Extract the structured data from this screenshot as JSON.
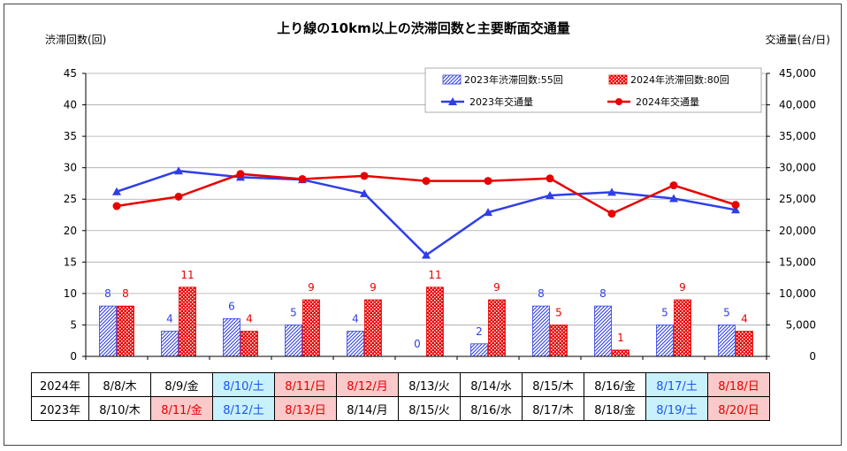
{
  "chart_data": {
    "type": "bar+line",
    "title": "上り線の10km以上の渋滞回数と主要断面交通量",
    "ylabel_left": "渋滞回数(回)",
    "ylabel_right": "交通量(台/日)",
    "ylim_left": [
      0,
      45
    ],
    "ylim_right": [
      0,
      45000
    ],
    "left_ticks": [
      "0",
      "5",
      "10",
      "15",
      "20",
      "25",
      "30",
      "35",
      "40",
      "45"
    ],
    "right_ticks": [
      "0",
      "5,000",
      "10,000",
      "15,000",
      "20,000",
      "25,000",
      "30,000",
      "35,000",
      "40,000",
      "45,000"
    ],
    "legend": {
      "bar2023": "2023年渋滞回数:55回",
      "bar2024": "2024年渋滞回数:80回",
      "line2023": "2023年交通量",
      "line2024": "2024年交通量"
    },
    "bar_2023": [
      8,
      4,
      6,
      5,
      4,
      0,
      2,
      8,
      8,
      5,
      5
    ],
    "bar_2024": [
      8,
      11,
      4,
      9,
      9,
      11,
      9,
      5,
      1,
      9,
      4
    ],
    "bar_2023_labels": [
      "8",
      "4",
      "6",
      "5",
      "4",
      "0",
      "2",
      "8",
      "8",
      "5",
      "5"
    ],
    "bar_2024_labels": [
      "8",
      "11",
      "4",
      "9",
      "9",
      "11",
      "9",
      "5",
      "1",
      "9",
      "4"
    ],
    "traffic_2023": [
      26200,
      29500,
      28500,
      28100,
      25900,
      16100,
      22900,
      25600,
      26100,
      25100,
      23300
    ],
    "traffic_2024": [
      23900,
      25400,
      29000,
      28200,
      28700,
      27900,
      27900,
      28300,
      22700,
      27200,
      24100
    ],
    "colors": {
      "c2023": "#2f3ee8",
      "c2024": "#e80000"
    },
    "grid": "horizontal"
  },
  "date_table": {
    "rows": [
      {
        "label": "2024年",
        "cells": [
          {
            "text": "8/8/木",
            "kind": "wk"
          },
          {
            "text": "8/9/金",
            "kind": "wk"
          },
          {
            "text": "8/10/土",
            "kind": "sat"
          },
          {
            "text": "8/11/日",
            "kind": "hol"
          },
          {
            "text": "8/12/月",
            "kind": "hol"
          },
          {
            "text": "8/13/火",
            "kind": "wk"
          },
          {
            "text": "8/14/水",
            "kind": "wk"
          },
          {
            "text": "8/15/木",
            "kind": "wk"
          },
          {
            "text": "8/16/金",
            "kind": "wk"
          },
          {
            "text": "8/17/土",
            "kind": "sat"
          },
          {
            "text": "8/18/日",
            "kind": "hol"
          }
        ]
      },
      {
        "label": "2023年",
        "cells": [
          {
            "text": "8/10/木",
            "kind": "wk"
          },
          {
            "text": "8/11/金",
            "kind": "hol"
          },
          {
            "text": "8/12/土",
            "kind": "sat"
          },
          {
            "text": "8/13/日",
            "kind": "hol"
          },
          {
            "text": "8/14/月",
            "kind": "wk"
          },
          {
            "text": "8/15/火",
            "kind": "wk"
          },
          {
            "text": "8/16/水",
            "kind": "wk"
          },
          {
            "text": "8/17/木",
            "kind": "wk"
          },
          {
            "text": "8/18/金",
            "kind": "wk"
          },
          {
            "text": "8/19/土",
            "kind": "sat"
          },
          {
            "text": "8/20/日",
            "kind": "hol"
          }
        ]
      }
    ]
  }
}
